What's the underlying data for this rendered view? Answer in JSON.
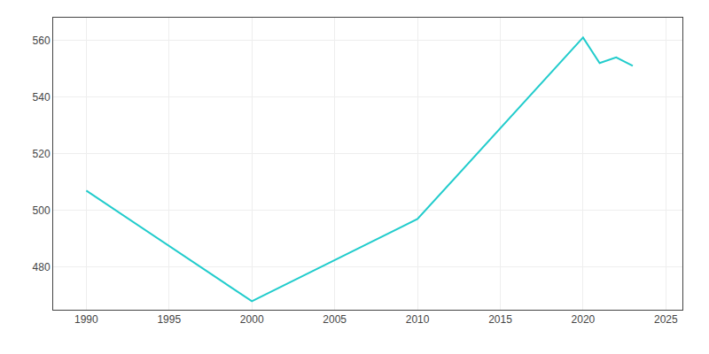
{
  "chart_data": {
    "type": "line",
    "x": [
      1990,
      2000,
      2010,
      2020,
      2021,
      2022,
      2023
    ],
    "values": [
      507,
      468,
      497,
      561,
      552,
      554,
      551
    ],
    "color": "#22CCCC",
    "xlim": [
      1988,
      2026
    ],
    "ylim": [
      465,
      568
    ],
    "xticks": [
      1990,
      1995,
      2000,
      2005,
      2010,
      2015,
      2020,
      2025
    ],
    "yticks": [
      480,
      500,
      520,
      540,
      560
    ],
    "grid": true
  }
}
